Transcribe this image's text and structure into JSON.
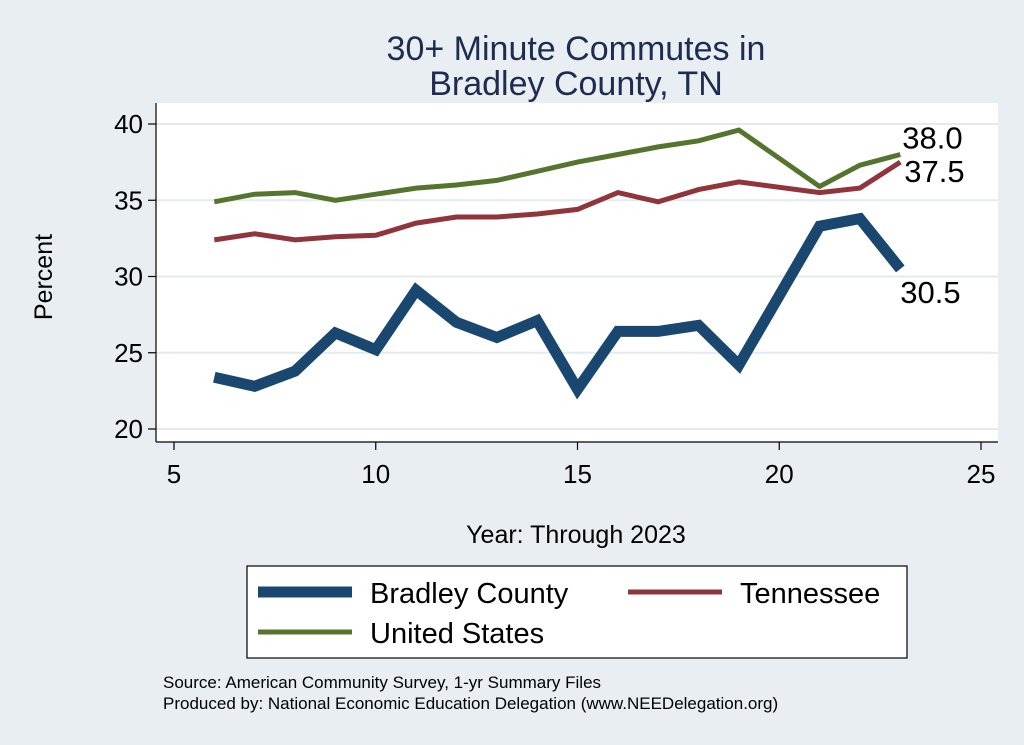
{
  "chart_data": {
    "type": "line",
    "title": [
      "30+ Minute Commutes in",
      "Bradley County, TN"
    ],
    "xlabel": "Year: Through 2023",
    "ylabel": "Percent",
    "xlim": [
      5,
      25
    ],
    "ylim": [
      20,
      40
    ],
    "xticks": [
      5,
      10,
      15,
      20,
      25
    ],
    "yticks": [
      20,
      25,
      30,
      35,
      40
    ],
    "grid": true,
    "series": [
      {
        "name": "Bradley County",
        "color": "#1a476f",
        "x": [
          6,
          7,
          8,
          9,
          10,
          11,
          12,
          13,
          14,
          15,
          16,
          17,
          18,
          19,
          21,
          22,
          23
        ],
        "y": [
          23.4,
          22.8,
          23.8,
          26.3,
          25.2,
          29.1,
          27.0,
          26.0,
          27.1,
          22.6,
          26.4,
          26.4,
          26.8,
          24.2,
          33.3,
          33.8,
          30.5
        ],
        "end_label": "30.5"
      },
      {
        "name": "Tennessee",
        "color": "#90353b",
        "x": [
          6,
          7,
          8,
          9,
          10,
          11,
          12,
          13,
          14,
          15,
          16,
          17,
          18,
          19,
          21,
          22,
          23
        ],
        "y": [
          32.4,
          32.8,
          32.4,
          32.6,
          32.7,
          33.5,
          33.9,
          33.9,
          34.1,
          34.4,
          35.5,
          34.9,
          35.7,
          36.2,
          35.5,
          35.8,
          37.5
        ],
        "end_label": "37.5"
      },
      {
        "name": "United States",
        "color": "#55752f",
        "x": [
          6,
          7,
          8,
          9,
          10,
          11,
          12,
          13,
          14,
          15,
          16,
          17,
          18,
          19,
          21,
          22,
          23
        ],
        "y": [
          34.9,
          35.4,
          35.5,
          35.0,
          35.4,
          35.8,
          36.0,
          36.3,
          36.9,
          37.5,
          38.0,
          38.5,
          38.9,
          39.6,
          35.9,
          37.3,
          38.0
        ],
        "end_label": "38.0"
      }
    ],
    "legend": [
      "Bradley County",
      "Tennessee",
      "United States"
    ],
    "source_lines": [
      "Source: American Community Survey, 1-yr Summary Files",
      "Produced by: National Economic Education Delegation (www.NEEDelegation.org)"
    ]
  }
}
